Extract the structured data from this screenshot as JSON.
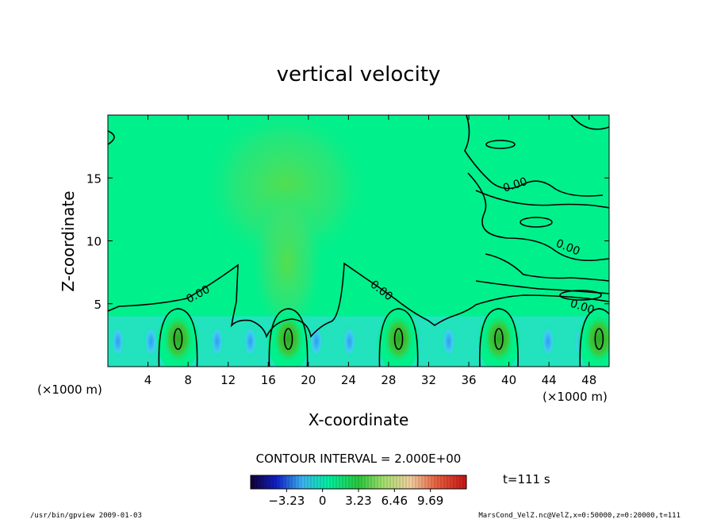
{
  "chart_data": {
    "type": "heatmap",
    "title": "vertical velocity",
    "xlabel": "X-coordinate",
    "ylabel": "Z-coordinate",
    "x_unit": "(×1000 m)",
    "y_unit": "(×1000 m)",
    "xlim": [
      0,
      50
    ],
    "ylim": [
      0,
      20
    ],
    "x_ticks": [
      4,
      8,
      12,
      16,
      20,
      24,
      28,
      32,
      36,
      40,
      44,
      48
    ],
    "y_ticks": [
      5,
      10,
      15
    ],
    "contour_interval_text": "CONTOUR INTERVAL = 2.000E+00",
    "contour_labels": [
      "0.00",
      "0.00",
      "0.00",
      "0.00",
      "0.00"
    ],
    "colorbar": {
      "ticks": [
        -3.23,
        0,
        3.23,
        6.46,
        9.69
      ],
      "tick_labels": [
        "−3.23",
        "0",
        "3.23",
        "6.46",
        "9.69"
      ],
      "range": [
        -6.46,
        12.92
      ]
    },
    "updraft_centers_x": [
      7,
      18,
      29,
      39,
      49
    ],
    "time_label": "t=111 s",
    "footer_left": "/usr/bin/gpview  2009-01-03",
    "footer_right": "MarsCond_VelZ.nc@VelZ,x=0:50000,z=0:20000,t=111",
    "colors": {
      "background_field": "#00f08c",
      "updraft_core": "#2dc83c",
      "downdraft": "#3cc8f0",
      "plume": "#6ee05a"
    }
  }
}
